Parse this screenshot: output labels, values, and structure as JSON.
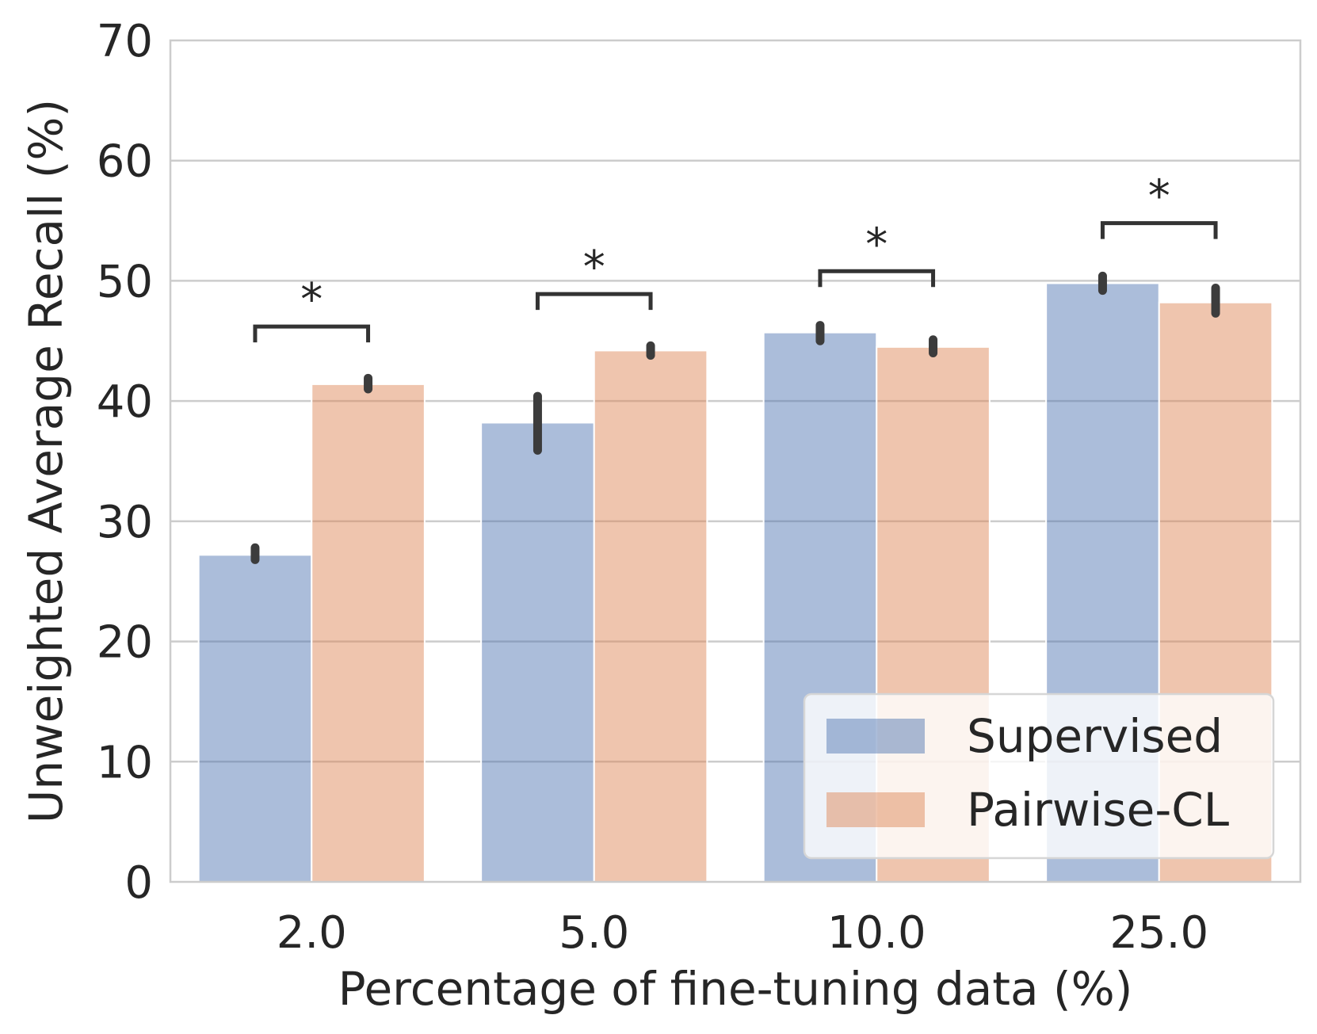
{
  "chart_data": {
    "type": "bar",
    "xlabel": "Percentage of fine-tuning data (%)",
    "ylabel": "Unweighted Average Recall (%)",
    "ylim": [
      0,
      70
    ],
    "yticks": [
      "0",
      "10",
      "20",
      "30",
      "40",
      "50",
      "60",
      "70"
    ],
    "categories": [
      "2.0",
      "5.0",
      "10.0",
      "25.0"
    ],
    "grid": true,
    "legend_position": "lower-right",
    "series": [
      {
        "name": "Supervised",
        "color": "#4c72b0",
        "values": [
          27.2,
          38.2,
          45.7,
          49.8
        ],
        "error_low": [
          26.8,
          35.9,
          45.0,
          49.2
        ],
        "error_high": [
          27.8,
          40.4,
          46.3,
          50.4
        ]
      },
      {
        "name": "Pairwise-CL",
        "color": "#dd8452",
        "values": [
          41.4,
          44.2,
          44.5,
          48.2
        ],
        "error_low": [
          41.0,
          43.8,
          44.0,
          47.3
        ],
        "error_high": [
          41.9,
          44.6,
          45.1,
          49.4
        ]
      }
    ],
    "significance": [
      {
        "category": "2.0",
        "label": "*",
        "bracket_y": 46.2
      },
      {
        "category": "5.0",
        "label": "*",
        "bracket_y": 48.9
      },
      {
        "category": "10.0",
        "label": "*",
        "bracket_y": 50.8
      },
      {
        "category": "25.0",
        "label": "*",
        "bracket_y": 54.8
      }
    ]
  }
}
